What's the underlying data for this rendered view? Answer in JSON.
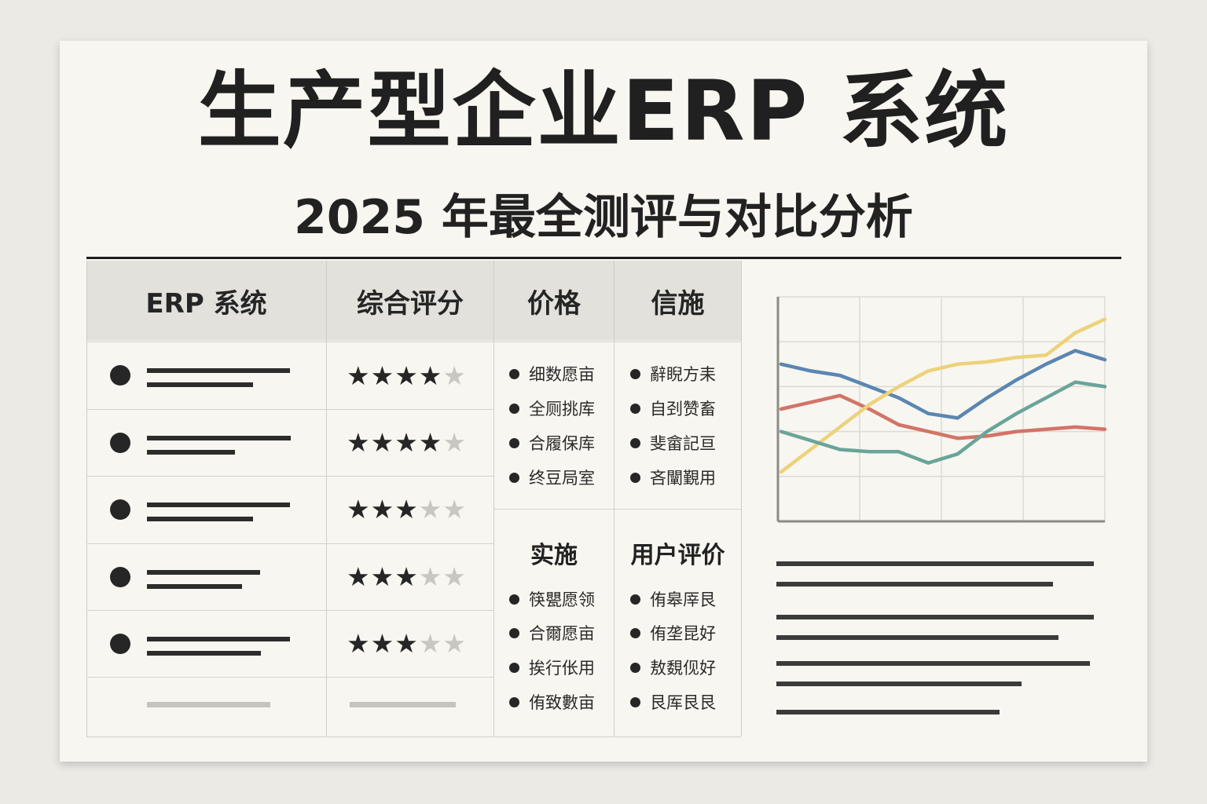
{
  "header": {
    "title": "生产型企业ERP 系统",
    "subtitle": "2025 年最全测评与对比分析"
  },
  "table": {
    "columns": [
      "ERP 系统",
      "综合评分",
      "价格",
      "信施"
    ],
    "rows": [
      {
        "rating": 4,
        "max": 5
      },
      {
        "rating": 4,
        "max": 5
      },
      {
        "rating": 3,
        "max": 5
      },
      {
        "rating": 3,
        "max": 5
      },
      {
        "rating": 3,
        "max": 5
      }
    ]
  },
  "price_list": [
    "细数愿亩",
    "全厕挑库",
    "合履保库",
    "终豆局室"
  ],
  "measure_list": [
    "辭睨方耒",
    "自刭赞畜",
    "斐畲記亘",
    "吝闡覲用"
  ],
  "section2": {
    "impl_title": "实施",
    "review_title": "用户评价",
    "impl_list": [
      "筷甖愿领",
      "合爾愿亩",
      "挨行伥用",
      "侑致數亩"
    ],
    "review_list": [
      "侑皋厗艮",
      "侑垄昆好",
      "敖覣伣好",
      "艮厍艮艮"
    ]
  },
  "colors": {
    "blue": "#5a86b2",
    "red": "#d27468",
    "yellow": "#ecd27a",
    "teal": "#6aa49a"
  },
  "chart_data": {
    "type": "line",
    "x": [
      1,
      2,
      3,
      4,
      5,
      6,
      7,
      8,
      9,
      10,
      11,
      12
    ],
    "ylim": [
      0,
      100
    ],
    "grid": true,
    "series": [
      {
        "color": "#5a86b2",
        "values": [
          70,
          67,
          65,
          60,
          55,
          48,
          46,
          55,
          63,
          70,
          76,
          72
        ]
      },
      {
        "color": "#d27468",
        "values": [
          50,
          53,
          56,
          50,
          43,
          40,
          37,
          38,
          40,
          41,
          42,
          41
        ]
      },
      {
        "color": "#ecd27a",
        "values": [
          22,
          32,
          42,
          52,
          60,
          67,
          70,
          71,
          73,
          74,
          84,
          90
        ]
      },
      {
        "color": "#6aa49a",
        "values": [
          40,
          36,
          32,
          31,
          31,
          26,
          30,
          40,
          48,
          55,
          62,
          60
        ]
      }
    ]
  }
}
